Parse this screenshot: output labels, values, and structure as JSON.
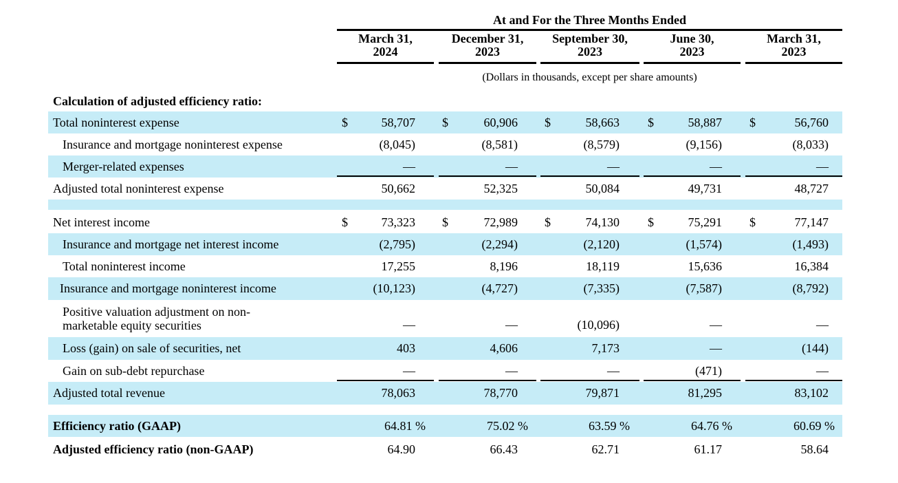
{
  "header": {
    "title": "At and For the Three Months Ended",
    "units": "(Dollars in thousands, except per share amounts)",
    "columns": [
      {
        "line1": "March 31,",
        "line2": "2024"
      },
      {
        "line1": "December 31,",
        "line2": "2023"
      },
      {
        "line1": "September 30,",
        "line2": "2023"
      },
      {
        "line1": "June 30,",
        "line2": "2023"
      },
      {
        "line1": "March 31,",
        "line2": "2023"
      }
    ]
  },
  "section_title": "Calculation of adjusted efficiency ratio:",
  "currency_symbol": "$",
  "percent_symbol": "%",
  "rows": [
    {
      "label": "Total noninterest expense",
      "values": [
        "58,707",
        "60,906",
        "58,663",
        "58,887",
        "56,760"
      ]
    },
    {
      "label": "Insurance and mortgage noninterest expense",
      "values": [
        "(8,045)",
        "(8,581)",
        "(8,579)",
        "(9,156)",
        "(8,033)"
      ]
    },
    {
      "label": "Merger-related expenses",
      "values": [
        "—",
        "—",
        "—",
        "—",
        "—"
      ]
    },
    {
      "label": "Adjusted total noninterest expense",
      "values": [
        "50,662",
        "52,325",
        "50,084",
        "49,731",
        "48,727"
      ]
    },
    {
      "label": "Net interest income",
      "values": [
        "73,323",
        "72,989",
        "74,130",
        "75,291",
        "77,147"
      ]
    },
    {
      "label": "Insurance and mortgage net interest income",
      "values": [
        "(2,795)",
        "(2,294)",
        "(2,120)",
        "(1,574)",
        "(1,493)"
      ]
    },
    {
      "label": "Total noninterest income",
      "values": [
        "17,255",
        "8,196",
        "18,119",
        "15,636",
        "16,384"
      ]
    },
    {
      "label": "Insurance and mortgage noninterest income",
      "values": [
        "(10,123)",
        "(4,727)",
        "(7,335)",
        "(7,587)",
        "(8,792)"
      ]
    },
    {
      "label_line1": "Positive valuation adjustment on non-",
      "label_line2": "marketable equity securities",
      "values": [
        "—",
        "—",
        "(10,096)",
        "—",
        "—"
      ]
    },
    {
      "label": "Loss (gain) on sale of securities, net",
      "values": [
        "403",
        "4,606",
        "7,173",
        "—",
        "(144)"
      ]
    },
    {
      "label": "Gain on sub-debt repurchase",
      "values": [
        "—",
        "—",
        "—",
        "(471)",
        "—"
      ]
    },
    {
      "label": "Adjusted total revenue",
      "values": [
        "78,063",
        "78,770",
        "79,871",
        "81,295",
        "83,102"
      ]
    },
    {
      "label": "Efficiency ratio (GAAP)",
      "values": [
        "64.81",
        "75.02",
        "63.59",
        "64.76",
        "60.69"
      ]
    },
    {
      "label": "Adjusted efficiency ratio (non-GAAP)",
      "values": [
        "64.90",
        "66.43",
        "62.71",
        "61.17",
        "58.64"
      ]
    }
  ]
}
